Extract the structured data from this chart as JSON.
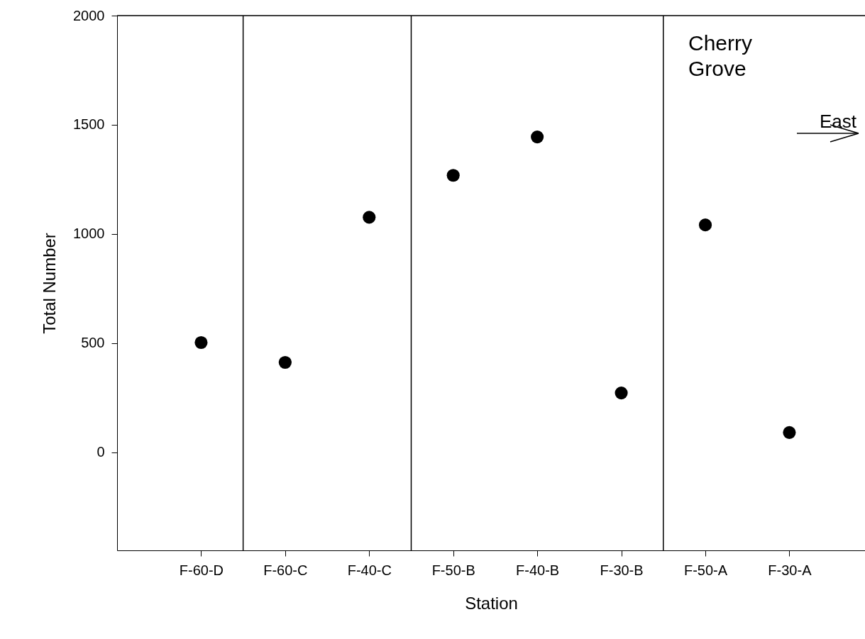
{
  "chart_data": {
    "type": "scatter",
    "xlabel": "Station",
    "ylabel": "Total Number",
    "categories": [
      "F-60-D",
      "F-60-C",
      "F-40-C",
      "F-50-B",
      "F-40-B",
      "F-30-B",
      "F-50-A",
      "F-30-A"
    ],
    "series": [
      {
        "color": "#000000",
        "values": [
          502,
          411,
          1076,
          1268,
          1444,
          271,
          1041,
          90
        ]
      }
    ],
    "ylim": [
      -450,
      2000
    ],
    "yticks": [
      0,
      500,
      1000,
      1500,
      2000
    ],
    "marker": "circle",
    "grid": false,
    "annotations": [
      "Cherry\nGrove",
      "East"
    ]
  }
}
